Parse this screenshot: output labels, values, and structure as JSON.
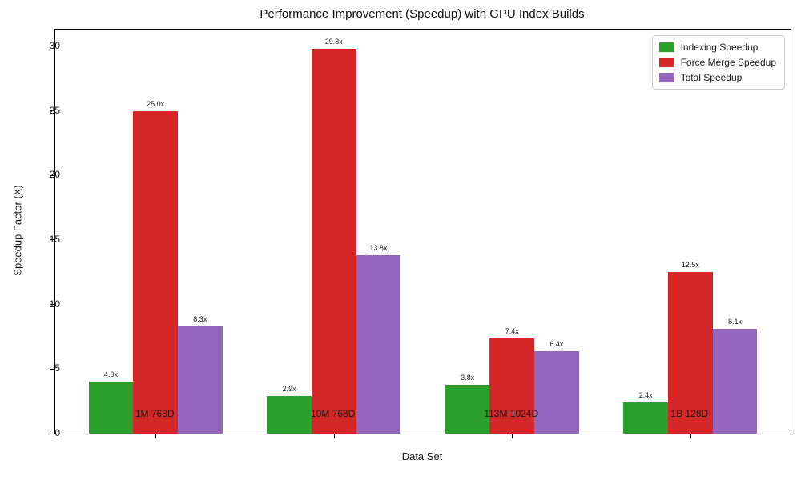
{
  "chart_data": {
    "type": "bar",
    "title": "Performance Improvement (Speedup) with GPU Index Builds",
    "xlabel": "Data Set",
    "ylabel": "Speedup Factor (X)",
    "categories": [
      "1M 768D",
      "10M 768D",
      "113M 1024D",
      "1B 128D"
    ],
    "series": [
      {
        "name": "Indexing Speedup",
        "color": "#2ca02c",
        "values": [
          4.0,
          2.9,
          3.8,
          2.4
        ],
        "labels": [
          "4.0x",
          "2.9x",
          "3.8x",
          "2.4x"
        ]
      },
      {
        "name": "Force Merge Speedup",
        "color": "#d62728",
        "values": [
          25.0,
          29.8,
          7.4,
          12.5
        ],
        "labels": [
          "25.0x",
          "29.8x",
          "7.4x",
          "12.5x"
        ]
      },
      {
        "name": "Total Speedup",
        "color": "#9467bd",
        "values": [
          8.3,
          13.8,
          6.4,
          8.1
        ],
        "labels": [
          "8.3x",
          "13.8x",
          "6.4x",
          "8.1x"
        ]
      }
    ],
    "yticks": [
      0,
      5,
      10,
      15,
      20,
      25,
      30
    ],
    "ylim": [
      0,
      31.29
    ],
    "grid": false,
    "legend_position": "upper right",
    "axis_color": "#000000",
    "text_color": "#1a1a1a"
  }
}
